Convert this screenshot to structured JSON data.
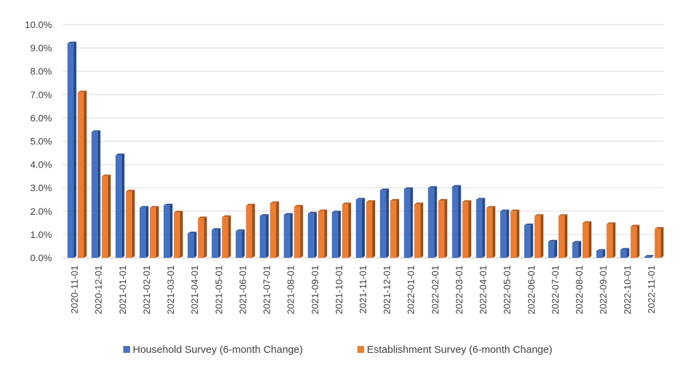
{
  "chart_data": {
    "type": "bar",
    "title": "",
    "xlabel": "",
    "ylabel": "",
    "ylim": [
      0,
      10
    ],
    "y_ticks": [
      "0.0%",
      "1.0%",
      "2.0%",
      "3.0%",
      "4.0%",
      "5.0%",
      "6.0%",
      "7.0%",
      "8.0%",
      "9.0%",
      "10.0%"
    ],
    "grid": "horizontal",
    "legend_position": "bottom",
    "categories": [
      "2020-11-01",
      "2020-12-01",
      "2021-01-01",
      "2021-02-01",
      "2021-03-01",
      "2021-04-01",
      "2021-05-01",
      "2021-06-01",
      "2021-07-01",
      "2021-08-01",
      "2021-09-01",
      "2021-10-01",
      "2021-11-01",
      "2021-12-01",
      "2022-01-01",
      "2022-02-01",
      "2022-03-01",
      "2022-04-01",
      "2022-05-01",
      "2022-06-01",
      "2022-07-01",
      "2022-08-01",
      "2022-09-01",
      "2022-10-01",
      "2022-11-01"
    ],
    "series": [
      {
        "name": "Household Survey (6-month Change)",
        "color": "#4472C4",
        "values": [
          9.2,
          5.4,
          4.4,
          2.15,
          2.25,
          1.05,
          1.2,
          1.15,
          1.8,
          1.85,
          1.9,
          1.95,
          2.5,
          2.9,
          2.95,
          3.0,
          3.05,
          2.5,
          2.0,
          1.4,
          0.7,
          0.65,
          0.3,
          0.35,
          0.05
        ]
      },
      {
        "name": "Establishment Survey (6-month Change)",
        "color": "#ED7D31",
        "values": [
          7.1,
          3.5,
          2.85,
          2.15,
          1.95,
          1.7,
          1.75,
          2.25,
          2.35,
          2.2,
          2.0,
          2.3,
          2.4,
          2.45,
          2.3,
          2.45,
          2.4,
          2.15,
          2.0,
          1.8,
          1.8,
          1.5,
          1.45,
          1.35,
          1.25
        ]
      }
    ]
  }
}
